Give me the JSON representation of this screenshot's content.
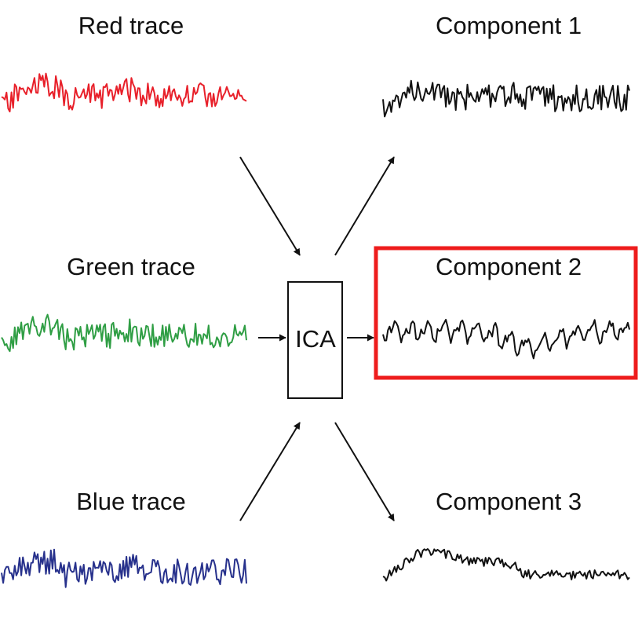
{
  "inputs": [
    {
      "label": "Red trace",
      "color": "#e8202a"
    },
    {
      "label": "Green trace",
      "color": "#2f9e44"
    },
    {
      "label": "Blue trace",
      "color": "#27318c"
    }
  ],
  "process": {
    "label": "ICA"
  },
  "outputs": [
    {
      "label": "Component 1",
      "color": "#111111"
    },
    {
      "label": "Component 2",
      "color": "#111111",
      "highlighted": true
    },
    {
      "label": "Component 3",
      "color": "#111111"
    }
  ],
  "colors": {
    "highlight_box": "#ee1c1c",
    "arrows": "#111111",
    "ica_box": "#111111"
  }
}
